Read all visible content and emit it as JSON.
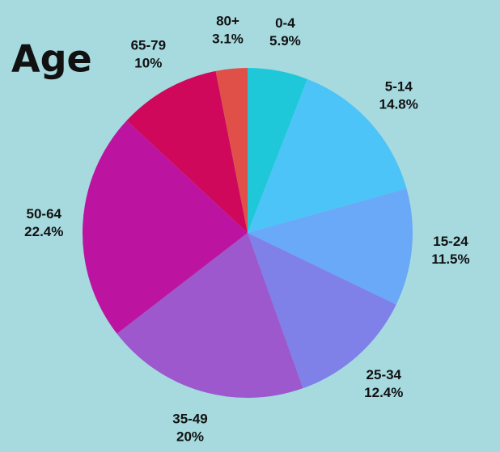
{
  "chart_data": {
    "type": "pie",
    "title": "Age",
    "categories": [
      "0-4",
      "5-14",
      "15-24",
      "25-34",
      "35-49",
      "50-64",
      "65-79",
      "80+"
    ],
    "values": [
      5.9,
      14.8,
      11.5,
      12.4,
      20,
      22.4,
      10,
      3.1
    ],
    "value_labels": [
      "5.9%",
      "14.8%",
      "11.5%",
      "12.4%",
      "20%",
      "22.4%",
      "10%",
      "3.1%"
    ],
    "colors": [
      "#1ec8d8",
      "#4cc4f8",
      "#6aa8f8",
      "#7f80e8",
      "#9c58cc",
      "#bc14a0",
      "#d0085c",
      "#e05048"
    ]
  }
}
